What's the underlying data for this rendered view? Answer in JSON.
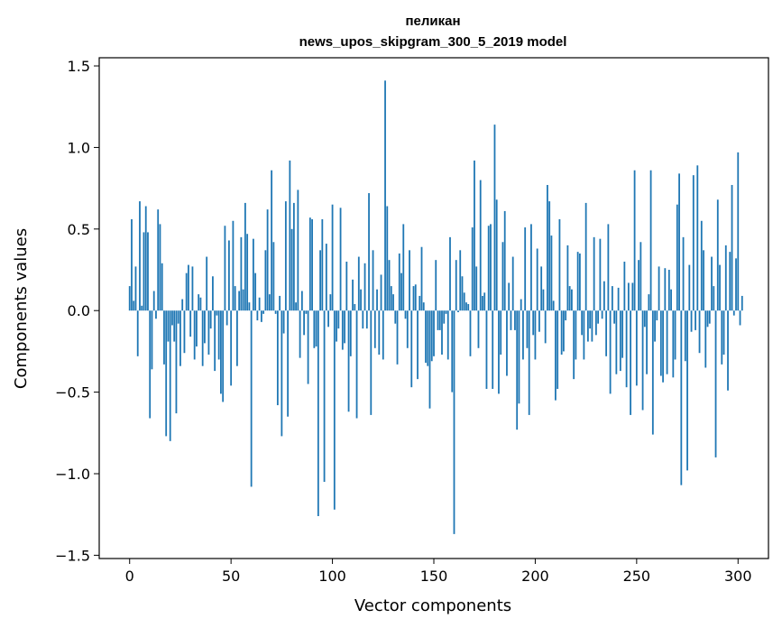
{
  "chart_data": {
    "type": "bar",
    "title": "пеликан",
    "subtitle": "news_upos_skipgram_300_5_2019 model",
    "xlabel": "Vector components",
    "ylabel": "Components values",
    "xlim": [
      -15,
      315
    ],
    "ylim": [
      -1.52,
      1.55
    ],
    "xticks": [
      0,
      50,
      100,
      150,
      200,
      250,
      300
    ],
    "yticks": [
      1.5,
      1.0,
      0.5,
      0.0,
      -0.5,
      -1.0,
      -1.5
    ],
    "ytick_labels": [
      "1.5",
      "1.0",
      "0.5",
      "0.0",
      "−0.5",
      "−1.0",
      "−1.5"
    ],
    "bar_color": "#1f77b4",
    "values": [
      0.15,
      0.56,
      0.06,
      0.27,
      -0.28,
      0.67,
      0.03,
      0.48,
      0.64,
      0.48,
      -0.66,
      -0.36,
      0.12,
      -0.05,
      0.62,
      0.53,
      0.29,
      -0.33,
      -0.77,
      -0.19,
      -0.8,
      -0.09,
      -0.19,
      -0.63,
      -0.08,
      -0.34,
      0.07,
      -0.26,
      0.23,
      0.28,
      -0.16,
      0.27,
      -0.3,
      -0.22,
      0.1,
      0.08,
      -0.34,
      -0.2,
      0.33,
      -0.27,
      -0.11,
      0.21,
      -0.37,
      -0.03,
      -0.3,
      -0.51,
      -0.56,
      0.52,
      -0.09,
      0.43,
      -0.46,
      0.55,
      0.15,
      -0.34,
      0.12,
      0.45,
      0.13,
      0.66,
      0.47,
      0.05,
      -1.08,
      0.44,
      0.23,
      -0.06,
      0.08,
      -0.07,
      -0.02,
      0.37,
      0.62,
      0.1,
      0.86,
      0.42,
      -0.02,
      -0.58,
      0.09,
      -0.77,
      -0.14,
      0.67,
      -0.65,
      0.92,
      0.5,
      0.66,
      0.05,
      0.74,
      -0.29,
      0.12,
      -0.15,
      -0.02,
      -0.45,
      0.57,
      0.56,
      -0.23,
      -0.22,
      -1.26,
      0.37,
      0.56,
      -1.05,
      0.41,
      -0.1,
      0.1,
      0.65,
      -1.22,
      -0.19,
      -0.11,
      0.63,
      -0.24,
      -0.2,
      0.3,
      -0.62,
      -0.28,
      0.19,
      0.04,
      -0.66,
      0.33,
      0.13,
      -0.11,
      0.29,
      -0.11,
      0.72,
      -0.64,
      0.37,
      -0.23,
      0.13,
      -0.27,
      0.22,
      -0.3,
      1.41,
      0.64,
      0.31,
      0.15,
      0.1,
      -0.08,
      -0.33,
      0.35,
      0.23,
      0.53,
      -0.05,
      -0.23,
      0.37,
      -0.47,
      0.15,
      0.16,
      -0.42,
      0.09,
      0.39,
      0.05,
      -0.32,
      -0.34,
      -0.6,
      -0.31,
      -0.28,
      0.31,
      -0.12,
      -0.12,
      -0.27,
      -0.08,
      -0.02,
      -0.3,
      0.45,
      -0.5,
      -1.37,
      0.31,
      -0.01,
      0.37,
      0.21,
      0.11,
      0.05,
      0.04,
      -0.28,
      0.51,
      0.92,
      0.27,
      -0.23,
      0.8,
      0.09,
      0.11,
      -0.48,
      0.52,
      0.53,
      -0.48,
      1.14,
      0.68,
      -0.51,
      -0.27,
      0.42,
      0.61,
      -0.4,
      0.17,
      -0.12,
      0.33,
      -0.12,
      -0.73,
      -0.57,
      0.07,
      -0.3,
      0.51,
      -0.23,
      -0.64,
      0.53,
      -0.15,
      -0.3,
      0.38,
      -0.13,
      0.27,
      0.13,
      -0.2,
      0.77,
      0.67,
      0.46,
      0.06,
      -0.55,
      -0.48,
      0.56,
      -0.27,
      -0.25,
      -0.06,
      0.4,
      0.15,
      0.13,
      -0.42,
      -0.3,
      0.36,
      0.35,
      -0.15,
      -0.3,
      0.66,
      -0.19,
      -0.11,
      -0.19,
      0.45,
      -0.15,
      -0.08,
      0.44,
      -0.05,
      0.18,
      -0.28,
      0.53,
      -0.51,
      0.15,
      -0.08,
      -0.39,
      0.14,
      -0.37,
      -0.29,
      0.3,
      -0.47,
      0.17,
      -0.64,
      0.17,
      0.86,
      -0.46,
      0.31,
      0.42,
      -0.61,
      -0.1,
      -0.39,
      0.1,
      0.86,
      -0.76,
      -0.19,
      -0.06,
      0.27,
      -0.4,
      -0.44,
      0.26,
      -0.39,
      0.25,
      0.13,
      -0.41,
      -0.3,
      0.65,
      0.84,
      -1.07,
      0.45,
      -0.31,
      -0.98,
      0.28,
      -0.13,
      0.83,
      -0.12,
      0.89,
      -0.26,
      0.55,
      0.37,
      -0.35,
      -0.1,
      -0.08,
      0.33,
      0.15,
      -0.9,
      0.68,
      0.28,
      -0.33,
      -0.27,
      0.4,
      -0.49,
      0.36,
      0.77,
      -0.03,
      0.32,
      0.97,
      -0.09,
      0.09
    ]
  }
}
